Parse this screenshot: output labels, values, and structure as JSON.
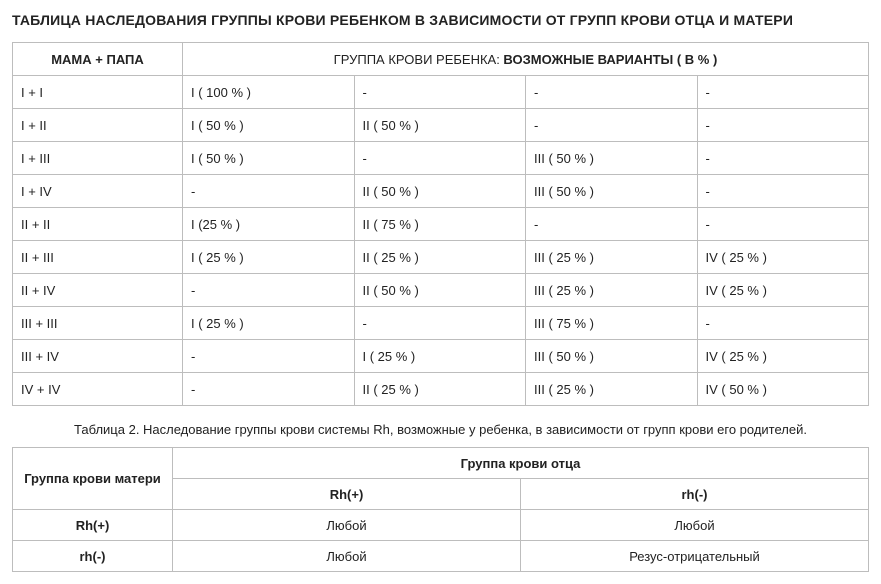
{
  "title": "ТАБЛИЦА НАСЛЕДОВАНИЯ ГРУППЫ КРОВИ РЕБЕНКОМ В ЗАВИСИМОСТИ ОТ ГРУПП КРОВИ ОТЦА И МАТЕРИ",
  "table1": {
    "header_parents": "МАМА + ПАПА",
    "header_child_prefix": "ГРУППА КРОВИ РЕБЕНКА: ",
    "header_child_bold": "ВОЗМОЖНЫЕ ВАРИАНТЫ ( В % )",
    "rows": [
      {
        "parents": "I + I",
        "c1": "I ( 100 % )",
        "c2": "-",
        "c3": "-",
        "c4": "-"
      },
      {
        "parents": "I + II",
        "c1": "I ( 50 % )",
        "c2": "II ( 50 % )",
        "c3": "-",
        "c4": "-"
      },
      {
        "parents": "I + III",
        "c1": "I ( 50 % )",
        "c2": "-",
        "c3": "III ( 50 % )",
        "c4": "-"
      },
      {
        "parents": "I + IV",
        "c1": "-",
        "c2": "II ( 50 % )",
        "c3": "III ( 50 % )",
        "c4": "-"
      },
      {
        "parents": "II + II",
        "c1": "I (25 % )",
        "c2": "II ( 75 % )",
        "c3": "-",
        "c4": "-"
      },
      {
        "parents": "II + III",
        "c1": "I ( 25 % )",
        "c2": "II ( 25 % )",
        "c3": "III ( 25 % )",
        "c4": "IV ( 25 % )"
      },
      {
        "parents": "II + IV",
        "c1": "-",
        "c2": "II ( 50 % )",
        "c3": "III ( 25 % )",
        "c4": "IV ( 25 % )"
      },
      {
        "parents": "III + III",
        "c1": "I ( 25 % )",
        "c2": "-",
        "c3": "III ( 75 % )",
        "c4": "-"
      },
      {
        "parents": "III + IV",
        "c1": "-",
        "c2": "I ( 25 % )",
        "c3": "III ( 50 % )",
        "c4": "IV ( 25 % )"
      },
      {
        "parents": "IV + IV",
        "c1": "-",
        "c2": "II ( 25 % )",
        "c3": "III ( 25 % )",
        "c4": "IV ( 50 % )"
      }
    ]
  },
  "caption2": "Таблица 2. Наследование группы крови системы Rh, возможные у ребенка, в зависимости от групп крови его родителей.",
  "table2": {
    "header_mother": "Группа крови матери",
    "header_father": "Группа крови отца",
    "father_cols": [
      "Rh(+)",
      "rh(-)"
    ],
    "rows": [
      {
        "mother": "Rh(+)",
        "v1": "Любой",
        "v2": "Любой"
      },
      {
        "mother": "rh(-)",
        "v1": "Любой",
        "v2": "Резус-отрицательный"
      }
    ]
  },
  "colors": {
    "border": "#bdbdbd",
    "text": "#222222",
    "background": "#ffffff"
  }
}
